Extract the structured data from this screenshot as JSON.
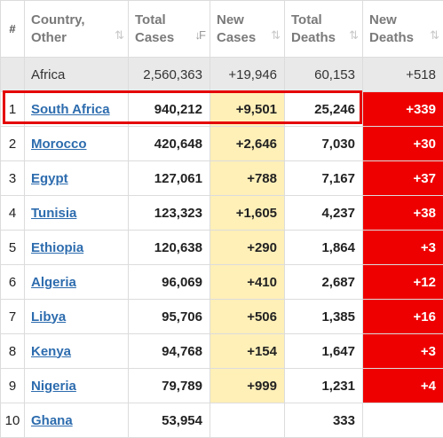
{
  "header": {
    "num": "#",
    "country": [
      "Country,",
      "Other"
    ],
    "total_cases": [
      "Total",
      "Cases"
    ],
    "new_cases": [
      "New",
      "Cases"
    ],
    "total_deaths": [
      "Total",
      "Deaths"
    ],
    "new_deaths": [
      "New",
      "Deaths"
    ],
    "sort_icon": "⇅",
    "sort_active_icon": "↓F"
  },
  "total_row": {
    "country": "Africa",
    "total_cases": "2,560,363",
    "new_cases": "+19,946",
    "total_deaths": "60,153",
    "new_deaths": "+518"
  },
  "rows": [
    {
      "rank": "1",
      "country": "South Africa",
      "total_cases": "940,212",
      "new_cases": "+9,501",
      "total_deaths": "25,246",
      "new_deaths": "+339"
    },
    {
      "rank": "2",
      "country": "Morocco",
      "total_cases": "420,648",
      "new_cases": "+2,646",
      "total_deaths": "7,030",
      "new_deaths": "+30"
    },
    {
      "rank": "3",
      "country": "Egypt",
      "total_cases": "127,061",
      "new_cases": "+788",
      "total_deaths": "7,167",
      "new_deaths": "+37"
    },
    {
      "rank": "4",
      "country": "Tunisia",
      "total_cases": "123,323",
      "new_cases": "+1,605",
      "total_deaths": "4,237",
      "new_deaths": "+38"
    },
    {
      "rank": "5",
      "country": "Ethiopia",
      "total_cases": "120,638",
      "new_cases": "+290",
      "total_deaths": "1,864",
      "new_deaths": "+3"
    },
    {
      "rank": "6",
      "country": "Algeria",
      "total_cases": "96,069",
      "new_cases": "+410",
      "total_deaths": "2,687",
      "new_deaths": "+12"
    },
    {
      "rank": "7",
      "country": "Libya",
      "total_cases": "95,706",
      "new_cases": "+506",
      "total_deaths": "1,385",
      "new_deaths": "+16"
    },
    {
      "rank": "8",
      "country": "Kenya",
      "total_cases": "94,768",
      "new_cases": "+154",
      "total_deaths": "1,647",
      "new_deaths": "+3"
    },
    {
      "rank": "9",
      "country": "Nigeria",
      "total_cases": "79,789",
      "new_cases": "+999",
      "total_deaths": "1,231",
      "new_deaths": "+4"
    },
    {
      "rank": "10",
      "country": "Ghana",
      "total_cases": "53,954",
      "new_cases": "",
      "total_deaths": "333",
      "new_deaths": ""
    }
  ],
  "colors": {
    "new_cases_bg": "#fff0b8",
    "new_deaths_bg": "#ee0000",
    "link": "#2d6cae",
    "highlight_border": "#e50000"
  }
}
